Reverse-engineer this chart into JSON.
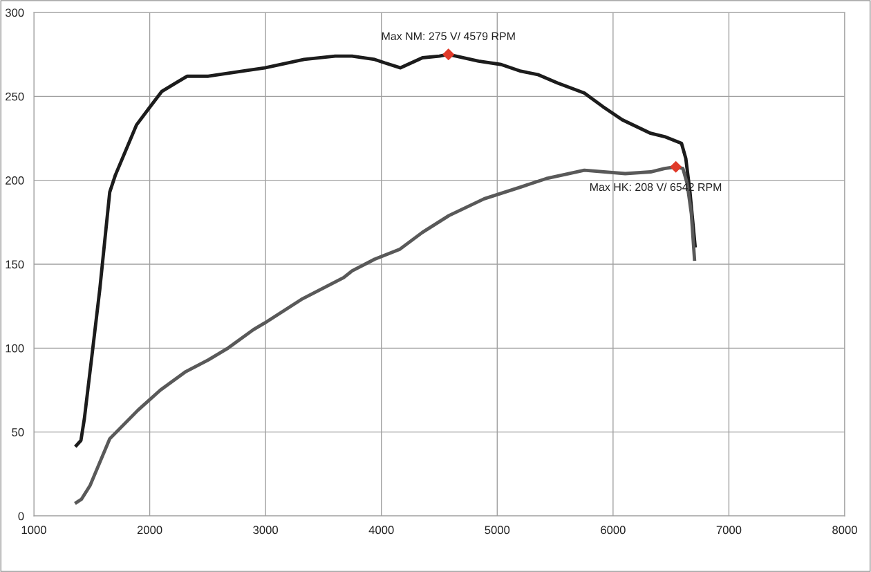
{
  "chart_data": {
    "type": "line",
    "xlim": [
      1000,
      8000
    ],
    "xticks": [
      1000,
      2000,
      3000,
      4000,
      5000,
      6000,
      7000,
      8000
    ],
    "ylim": [
      0,
      300
    ],
    "yticks": [
      0,
      50,
      100,
      150,
      200,
      250,
      300
    ],
    "grid": true,
    "legend": false,
    "marker": "none",
    "line_style": "solid",
    "series": [
      {
        "color": "#1c1c1c",
        "x": [
          1367,
          1406,
          1436,
          1509,
          1569,
          1655,
          1703,
          1886,
          1995,
          2105,
          2226,
          2324,
          2506,
          2798,
          2993,
          3333,
          3601,
          3747,
          3942,
          4027,
          4165,
          4355,
          4501,
          4577,
          4839,
          5034,
          5204,
          5350,
          5521,
          5752,
          5910,
          6080,
          6324,
          6445,
          6591,
          6628,
          6664,
          6708
        ],
        "values": [
          42,
          45,
          58,
          100,
          135,
          193,
          203,
          233,
          243,
          253,
          258,
          262,
          262,
          265,
          267,
          272,
          274,
          274,
          272,
          270,
          267,
          273,
          274,
          275,
          271,
          269,
          265,
          263,
          258,
          252,
          244,
          236,
          228,
          226,
          222,
          213,
          193,
          161
        ]
      },
      {
        "color": "#595959",
        "x": [
          1367,
          1411,
          1484,
          1655,
          1898,
          2092,
          2311,
          2506,
          2676,
          2895,
          2993,
          3309,
          3674,
          3747,
          3942,
          4161,
          4355,
          4584,
          4888,
          5204,
          5423,
          5752,
          6105,
          6324,
          6445,
          6543,
          6603,
          6640,
          6676,
          6703
        ],
        "values": [
          8,
          10,
          18,
          46,
          63,
          75,
          86,
          93,
          100,
          111,
          115,
          129,
          142,
          146,
          153,
          159,
          169,
          179,
          189,
          196,
          201,
          206,
          204,
          205,
          207,
          208,
          207,
          198,
          180,
          153
        ]
      },
      {
        "type": "scatter",
        "marker": "diamond",
        "color": "#e03a2a",
        "x": [
          4579,
          6542
        ],
        "values": [
          275,
          208
        ]
      }
    ],
    "annotations": [
      {
        "text": "Max NM: 275 V/ 4579 RPM",
        "x": 4579,
        "y": 275
      },
      {
        "text": "Max HK: 208 V/ 6542 RPM",
        "x": 6542,
        "y": 208
      }
    ]
  }
}
